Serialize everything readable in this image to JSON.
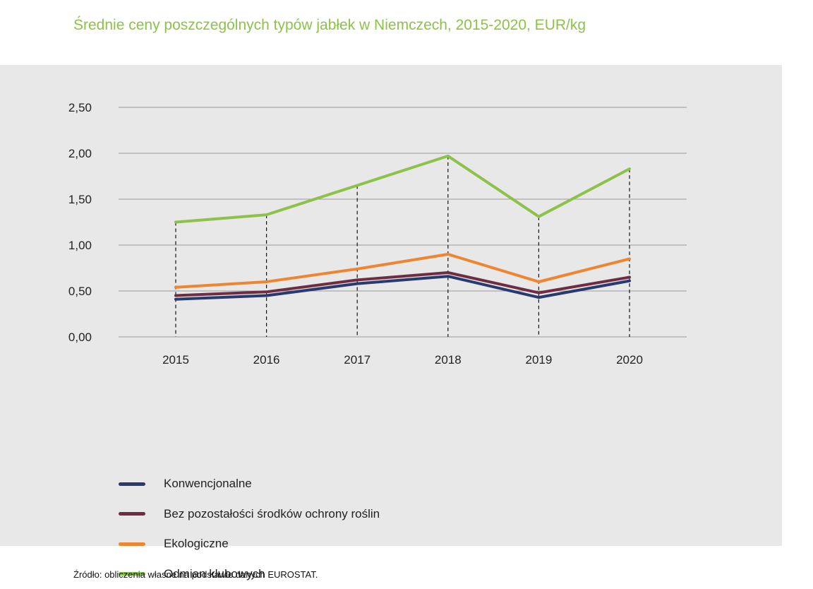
{
  "title": "Średnie ceny poszczególnych typów jabłek w Niemczech, 2015-2020, EUR/kg",
  "source": "Źródło: obliczenia własne na podstawie danych EUROSTAT.",
  "chart_data": {
    "type": "line",
    "title": "Średnie ceny poszczególnych typów jabłek w Niemczech, 2015-2020, EUR/kg",
    "xlabel": "",
    "ylabel": "",
    "categories": [
      "2015",
      "2016",
      "2017",
      "2018",
      "2019",
      "2020"
    ],
    "ylim": [
      0,
      2.5
    ],
    "yticks": [
      "0,00",
      "0,50",
      "1,00",
      "1,50",
      "2,00",
      "2,50"
    ],
    "grid": "horizontal",
    "legend_position": "bottom",
    "series": [
      {
        "name": "Konwencjonalne",
        "color": "#283a6e",
        "values": [
          0.41,
          0.45,
          0.58,
          0.66,
          0.43,
          0.61
        ]
      },
      {
        "name": "Bez pozostałości środków ochrony roślin",
        "color": "#6e2d43",
        "values": [
          0.45,
          0.49,
          0.62,
          0.7,
          0.48,
          0.65
        ]
      },
      {
        "name": "Ekologiczne",
        "color": "#ee8531",
        "values": [
          0.54,
          0.6,
          0.74,
          0.9,
          0.6,
          0.85
        ]
      },
      {
        "name": "Odmian klubowych",
        "color": "#8cc24a",
        "values": [
          1.25,
          1.33,
          1.65,
          1.97,
          1.31,
          1.83
        ]
      }
    ]
  }
}
